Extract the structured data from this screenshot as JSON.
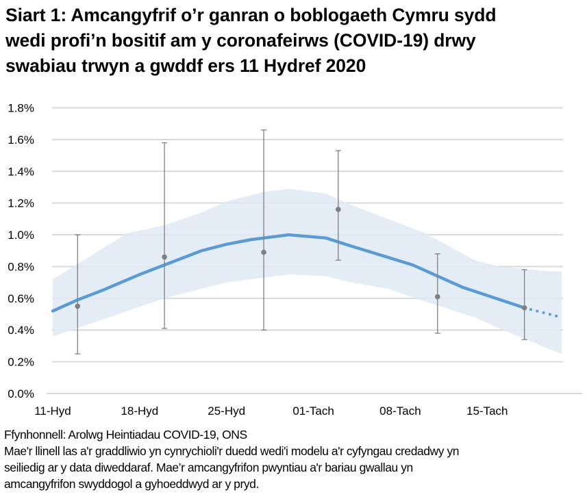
{
  "title_lines": [
    "Siart 1: Amcangyfrif o’r ganran o boblogaeth Cymru sydd",
    "wedi profi’n bositif am y coronafeirws (COVID-19) drwy",
    "swabiau trwyn a gwddf ers 11 Hydref 2020"
  ],
  "footer": {
    "source": "Ffynhonnell: Arolwg Heintiadau COVID-19, ONS",
    "note_lines": [
      "Mae'r llinell las a'r graddliwio yn cynrychioli'r duedd wedi'i modelu a'r cyfyngau credadwy yn",
      "seiliedig ar y data diweddaraf. Mae’r amcangyfrifon pwyntiau a'r bariau gwallau yn",
      "amcangyfrifon swyddogol a gyhoeddwyd ar y pryd."
    ]
  },
  "chart_data": {
    "type": "line",
    "title": "Siart 1: Amcangyfrif o’r ganran o boblogaeth Cymru sydd wedi profi’n bositif am y coronafeirws (COVID-19) drwy swabiau trwyn a gwddf ers 11 Hydref 2020",
    "xlabel": "",
    "ylabel": "",
    "ylim": [
      0,
      1.8
    ],
    "xlim": [
      "2020-10-11",
      "2020-11-21"
    ],
    "grid": true,
    "legend": "none",
    "y_ticks": [
      {
        "value": 0.0,
        "label": "0.0%"
      },
      {
        "value": 0.2,
        "label": "0.2%"
      },
      {
        "value": 0.4,
        "label": "0.4%"
      },
      {
        "value": 0.6,
        "label": "0.6%"
      },
      {
        "value": 0.8,
        "label": "0.8%"
      },
      {
        "value": 1.0,
        "label": "1.0%"
      },
      {
        "value": 1.2,
        "label": "1.2%"
      },
      {
        "value": 1.4,
        "label": "1.4%"
      },
      {
        "value": 1.6,
        "label": "1.6%"
      },
      {
        "value": 1.8,
        "label": "1.8%"
      }
    ],
    "x_ticks": [
      {
        "date": "2020-10-11",
        "label": "11-Hyd"
      },
      {
        "date": "2020-10-18",
        "label": "18-Hyd"
      },
      {
        "date": "2020-10-25",
        "label": "25-Hyd"
      },
      {
        "date": "2020-11-01",
        "label": "01-Tach"
      },
      {
        "date": "2020-11-08",
        "label": "08-Tach"
      },
      {
        "date": "2020-11-15",
        "label": "15-Tach"
      }
    ],
    "colors": {
      "trend": "#5b9bd5",
      "band": "#dfe9f5",
      "points": "#808080",
      "error_bars": "#7f7f7f",
      "grid": "#d9d9d9"
    },
    "modelled_trend": {
      "style": "solid until 2020-11-18, dotted after",
      "points": [
        {
          "x": "2020-10-11",
          "y": 0.52
        },
        {
          "x": "2020-10-13",
          "y": 0.59
        },
        {
          "x": "2020-10-15",
          "y": 0.65
        },
        {
          "x": "2020-10-18",
          "y": 0.75
        },
        {
          "x": "2020-10-20",
          "y": 0.81
        },
        {
          "x": "2020-10-23",
          "y": 0.9
        },
        {
          "x": "2020-10-25",
          "y": 0.94
        },
        {
          "x": "2020-10-27",
          "y": 0.97
        },
        {
          "x": "2020-10-30",
          "y": 1.0
        },
        {
          "x": "2020-11-02",
          "y": 0.98
        },
        {
          "x": "2020-11-04",
          "y": 0.93
        },
        {
          "x": "2020-11-09",
          "y": 0.81
        },
        {
          "x": "2020-11-13",
          "y": 0.67
        },
        {
          "x": "2020-11-18",
          "y": 0.54
        },
        {
          "x": "2020-11-21",
          "y": 0.48
        }
      ]
    },
    "credible_interval": [
      {
        "x": "2020-10-11",
        "lower": 0.36,
        "upper": 0.72
      },
      {
        "x": "2020-10-17",
        "lower": 0.52,
        "upper": 1.01
      },
      {
        "x": "2020-10-20",
        "lower": 0.6,
        "upper": 1.06
      },
      {
        "x": "2020-10-23",
        "lower": 0.66,
        "upper": 1.14
      },
      {
        "x": "2020-10-25",
        "lower": 0.7,
        "upper": 1.21
      },
      {
        "x": "2020-10-28",
        "lower": 0.73,
        "upper": 1.27
      },
      {
        "x": "2020-10-30",
        "lower": 0.75,
        "upper": 1.29
      },
      {
        "x": "2020-11-02",
        "lower": 0.74,
        "upper": 1.26
      },
      {
        "x": "2020-11-04",
        "lower": 0.7,
        "upper": 1.19
      },
      {
        "x": "2020-11-07",
        "lower": 0.66,
        "upper": 1.1
      },
      {
        "x": "2020-11-10",
        "lower": 0.58,
        "upper": 1.01
      },
      {
        "x": "2020-11-14",
        "lower": 0.48,
        "upper": 0.84
      },
      {
        "x": "2020-11-16",
        "lower": 0.41,
        "upper": 0.8
      },
      {
        "x": "2020-11-20",
        "lower": 0.28,
        "upper": 0.77
      },
      {
        "x": "2020-11-21",
        "lower": 0.25,
        "upper": 0.77
      }
    ],
    "official_estimates": [
      {
        "x": "2020-10-13",
        "y": 0.55,
        "lower": 0.25,
        "upper": 1.0
      },
      {
        "x": "2020-10-20",
        "y": 0.86,
        "lower": 0.41,
        "upper": 1.58
      },
      {
        "x": "2020-10-28",
        "y": 0.89,
        "lower": 0.4,
        "upper": 1.66
      },
      {
        "x": "2020-11-03",
        "y": 1.16,
        "lower": 0.84,
        "upper": 1.53
      },
      {
        "x": "2020-11-11",
        "y": 0.61,
        "lower": 0.38,
        "upper": 0.88
      },
      {
        "x": "2020-11-18",
        "y": 0.54,
        "lower": 0.34,
        "upper": 0.78
      }
    ]
  }
}
